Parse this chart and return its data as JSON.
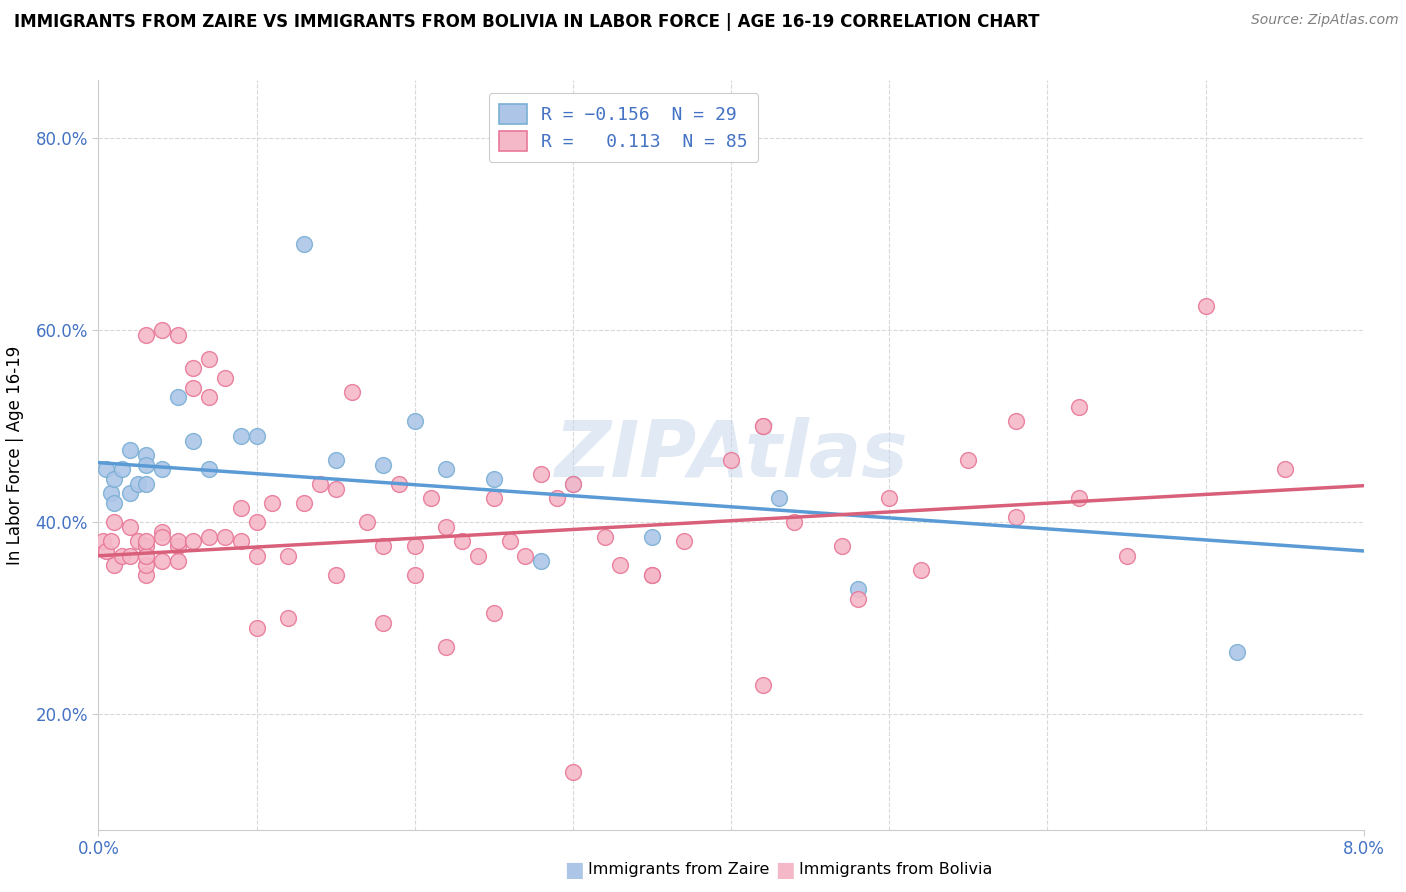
{
  "title": "IMMIGRANTS FROM ZAIRE VS IMMIGRANTS FROM BOLIVIA IN LABOR FORCE | AGE 16-19 CORRELATION CHART",
  "source": "Source: ZipAtlas.com",
  "ylabel": "In Labor Force | Age 16-19",
  "xmin": 0.0,
  "xmax": 0.08,
  "ymin": 0.08,
  "ymax": 0.86,
  "x_ticks": [
    0.0,
    0.08
  ],
  "x_tick_labels": [
    "0.0%",
    "8.0%"
  ],
  "y_ticks": [
    0.2,
    0.4,
    0.6,
    0.8
  ],
  "y_tick_labels": [
    "20.0%",
    "40.0%",
    "60.0%",
    "80.0%"
  ],
  "legend_label1": "Immigrants from Zaire",
  "legend_label2": "Immigrants from Bolivia",
  "color_zaire_fill": "#adc6e8",
  "color_zaire_edge": "#7aafd4",
  "color_bolivia_fill": "#f4b8c8",
  "color_bolivia_edge": "#e87898",
  "color_zaire_line": "#5b9bd5",
  "color_bolivia_line": "#d9607a",
  "zaire_x": [
    0.0005,
    0.0008,
    0.001,
    0.001,
    0.0015,
    0.002,
    0.002,
    0.0025,
    0.003,
    0.003,
    0.003,
    0.004,
    0.005,
    0.006,
    0.007,
    0.009,
    0.01,
    0.013,
    0.015,
    0.018,
    0.02,
    0.022,
    0.025,
    0.028,
    0.03,
    0.035,
    0.043,
    0.048,
    0.072
  ],
  "zaire_y": [
    0.455,
    0.43,
    0.42,
    0.445,
    0.455,
    0.43,
    0.475,
    0.44,
    0.47,
    0.46,
    0.44,
    0.455,
    0.53,
    0.485,
    0.455,
    0.49,
    0.49,
    0.69,
    0.465,
    0.46,
    0.505,
    0.455,
    0.445,
    0.36,
    0.44,
    0.385,
    0.425,
    0.33,
    0.265
  ],
  "bolivia_x": [
    0.0003,
    0.0005,
    0.0008,
    0.001,
    0.001,
    0.0015,
    0.002,
    0.002,
    0.0025,
    0.003,
    0.003,
    0.003,
    0.003,
    0.003,
    0.004,
    0.004,
    0.004,
    0.005,
    0.005,
    0.005,
    0.006,
    0.006,
    0.006,
    0.007,
    0.007,
    0.008,
    0.008,
    0.009,
    0.009,
    0.01,
    0.01,
    0.011,
    0.012,
    0.013,
    0.014,
    0.015,
    0.016,
    0.017,
    0.018,
    0.019,
    0.02,
    0.021,
    0.022,
    0.023,
    0.024,
    0.025,
    0.026,
    0.027,
    0.028,
    0.029,
    0.03,
    0.032,
    0.033,
    0.035,
    0.037,
    0.04,
    0.042,
    0.044,
    0.047,
    0.05,
    0.052,
    0.055,
    0.058,
    0.062,
    0.065,
    0.07,
    0.003,
    0.004,
    0.005,
    0.007,
    0.01,
    0.012,
    0.015,
    0.018,
    0.02,
    0.022,
    0.025,
    0.03,
    0.035,
    0.042,
    0.048,
    0.062,
    0.058,
    0.042,
    0.075
  ],
  "bolivia_y": [
    0.38,
    0.37,
    0.38,
    0.355,
    0.4,
    0.365,
    0.395,
    0.365,
    0.38,
    0.345,
    0.375,
    0.355,
    0.365,
    0.38,
    0.36,
    0.39,
    0.385,
    0.375,
    0.38,
    0.36,
    0.38,
    0.54,
    0.56,
    0.385,
    0.53,
    0.385,
    0.55,
    0.415,
    0.38,
    0.4,
    0.365,
    0.42,
    0.365,
    0.42,
    0.44,
    0.435,
    0.535,
    0.4,
    0.375,
    0.44,
    0.375,
    0.425,
    0.395,
    0.38,
    0.365,
    0.425,
    0.38,
    0.365,
    0.45,
    0.425,
    0.44,
    0.385,
    0.355,
    0.345,
    0.38,
    0.465,
    0.5,
    0.4,
    0.375,
    0.425,
    0.35,
    0.465,
    0.405,
    0.425,
    0.365,
    0.625,
    0.595,
    0.6,
    0.595,
    0.57,
    0.29,
    0.3,
    0.345,
    0.295,
    0.345,
    0.27,
    0.305,
    0.14,
    0.345,
    0.23,
    0.32,
    0.52,
    0.505,
    0.5,
    0.455
  ],
  "zaire_line_x": [
    0.0,
    0.08
  ],
  "zaire_line_y": [
    0.462,
    0.37
  ],
  "bolivia_line_x": [
    0.0,
    0.08
  ],
  "bolivia_line_y": [
    0.365,
    0.438
  ],
  "grid_color": "#d8d8d8",
  "grid_x_positions": [
    0.01,
    0.02,
    0.03,
    0.04,
    0.05,
    0.06,
    0.07
  ]
}
